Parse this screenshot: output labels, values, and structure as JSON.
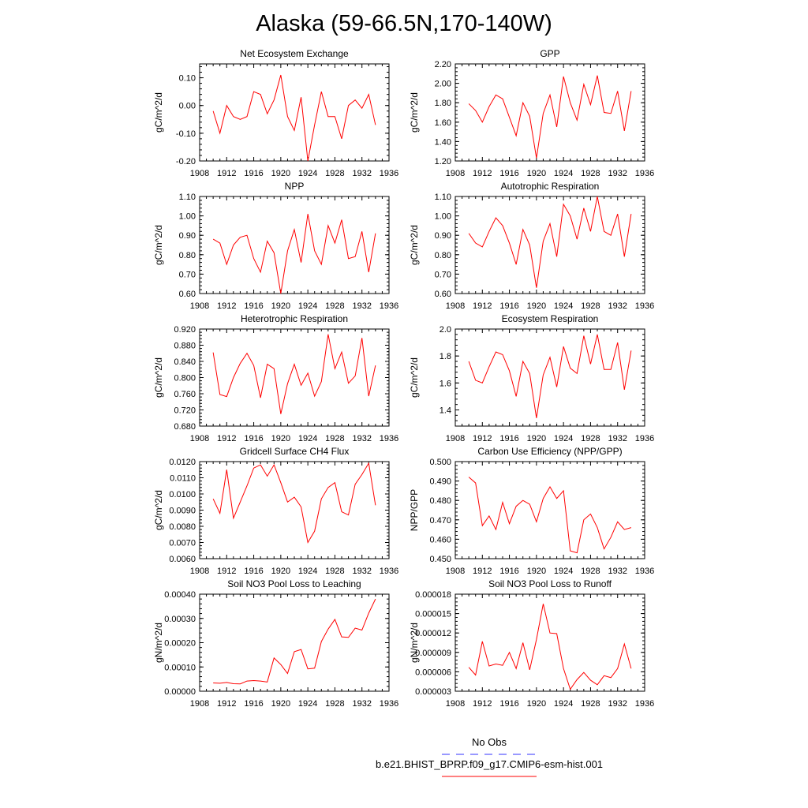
{
  "figure": {
    "title": "Alaska (59-66.5N,170-140W)",
    "legend": [
      {
        "label": "No Obs",
        "color": "#3333ff",
        "style": "dashed"
      },
      {
        "label": "b.e21.BHIST_BPRP.f09_g17.CMIP6-esm-hist.001",
        "color": "#ff0000",
        "style": "solid"
      }
    ]
  },
  "chart_data": [
    {
      "type": "line",
      "title": "Net Ecosystem Exchange",
      "xlabel": "",
      "ylabel": "gC/m^2/d",
      "xlim": [
        1908,
        1936
      ],
      "xticks": [
        "1908",
        "1912",
        "1916",
        "1920",
        "1924",
        "1928",
        "1932",
        "1936"
      ],
      "ylim": [
        -0.2,
        0.15
      ],
      "yticks": [
        "0.10",
        "0.00",
        "-0.10",
        "-0.20"
      ],
      "yticks_values": [
        0.1,
        0.0,
        -0.1,
        -0.2
      ],
      "series": [
        {
          "color": "#ff0000",
          "x": [
            1910,
            1911,
            1912,
            1913,
            1914,
            1915,
            1916,
            1917,
            1918,
            1919,
            1920,
            1921,
            1922,
            1923,
            1924,
            1925,
            1926,
            1927,
            1928,
            1929,
            1930,
            1931,
            1932,
            1933,
            1934
          ],
          "values": [
            -0.02,
            -0.1,
            0.0,
            -0.04,
            -0.05,
            -0.04,
            0.05,
            0.04,
            -0.03,
            0.02,
            0.11,
            -0.04,
            -0.09,
            0.03,
            -0.2,
            -0.07,
            0.05,
            -0.04,
            -0.04,
            -0.12,
            0.0,
            0.02,
            -0.01,
            0.04,
            -0.07
          ]
        }
      ]
    },
    {
      "type": "line",
      "title": "GPP",
      "xlabel": "",
      "ylabel": "gC/m^2/d",
      "xlim": [
        1908,
        1936
      ],
      "xticks": [
        "1908",
        "1912",
        "1916",
        "1920",
        "1924",
        "1928",
        "1932",
        "1936"
      ],
      "ylim": [
        1.2,
        2.2
      ],
      "yticks": [
        "2.20",
        "2.00",
        "1.80",
        "1.60",
        "1.40",
        "1.20"
      ],
      "yticks_values": [
        2.2,
        2.0,
        1.8,
        1.6,
        1.4,
        1.2
      ],
      "series": [
        {
          "color": "#ff0000",
          "x": [
            1910,
            1911,
            1912,
            1913,
            1914,
            1915,
            1916,
            1917,
            1918,
            1919,
            1920,
            1921,
            1922,
            1923,
            1924,
            1925,
            1926,
            1927,
            1928,
            1929,
            1930,
            1931,
            1932,
            1933,
            1934
          ],
          "values": [
            1.79,
            1.72,
            1.6,
            1.76,
            1.88,
            1.84,
            1.65,
            1.46,
            1.8,
            1.66,
            1.23,
            1.69,
            1.88,
            1.55,
            2.07,
            1.8,
            1.62,
            1.99,
            1.78,
            2.08,
            1.7,
            1.69,
            1.92,
            1.51,
            1.92
          ]
        }
      ]
    },
    {
      "type": "line",
      "title": "NPP",
      "xlabel": "",
      "ylabel": "gC/m^2/d",
      "xlim": [
        1908,
        1936
      ],
      "xticks": [
        "1908",
        "1912",
        "1916",
        "1920",
        "1924",
        "1928",
        "1932",
        "1936"
      ],
      "ylim": [
        0.6,
        1.1
      ],
      "yticks": [
        "1.10",
        "1.00",
        "0.90",
        "0.80",
        "0.70",
        "0.60"
      ],
      "yticks_values": [
        1.1,
        1.0,
        0.9,
        0.8,
        0.7,
        0.6
      ],
      "series": [
        {
          "color": "#ff0000",
          "x": [
            1910,
            1911,
            1912,
            1913,
            1914,
            1915,
            1916,
            1917,
            1918,
            1919,
            1920,
            1921,
            1922,
            1923,
            1924,
            1925,
            1926,
            1927,
            1928,
            1929,
            1930,
            1931,
            1932,
            1933,
            1934
          ],
          "values": [
            0.88,
            0.86,
            0.75,
            0.85,
            0.89,
            0.9,
            0.78,
            0.71,
            0.87,
            0.81,
            0.6,
            0.82,
            0.93,
            0.76,
            1.01,
            0.82,
            0.75,
            0.95,
            0.86,
            0.98,
            0.78,
            0.79,
            0.92,
            0.71,
            0.91
          ]
        }
      ]
    },
    {
      "type": "line",
      "title": "Autotrophic Respiration",
      "xlabel": "",
      "ylabel": "gC/m^2/d",
      "xlim": [
        1908,
        1936
      ],
      "xticks": [
        "1908",
        "1912",
        "1916",
        "1920",
        "1924",
        "1928",
        "1932",
        "1936"
      ],
      "ylim": [
        0.6,
        1.1
      ],
      "yticks": [
        "1.10",
        "1.00",
        "0.90",
        "0.80",
        "0.70",
        "0.60"
      ],
      "yticks_values": [
        1.1,
        1.0,
        0.9,
        0.8,
        0.7,
        0.6
      ],
      "series": [
        {
          "color": "#ff0000",
          "x": [
            1910,
            1911,
            1912,
            1913,
            1914,
            1915,
            1916,
            1917,
            1918,
            1919,
            1920,
            1921,
            1922,
            1923,
            1924,
            1925,
            1926,
            1927,
            1928,
            1929,
            1930,
            1931,
            1932,
            1933,
            1934
          ],
          "values": [
            0.91,
            0.86,
            0.84,
            0.92,
            0.99,
            0.95,
            0.86,
            0.75,
            0.93,
            0.85,
            0.63,
            0.87,
            0.96,
            0.79,
            1.06,
            1.0,
            0.88,
            1.04,
            0.92,
            1.1,
            0.92,
            0.9,
            1.01,
            0.79,
            1.01
          ]
        }
      ]
    },
    {
      "type": "line",
      "title": "Heterotrophic Respiration",
      "xlabel": "",
      "ylabel": "gC/m^2/d",
      "xlim": [
        1908,
        1936
      ],
      "xticks": [
        "1908",
        "1912",
        "1916",
        "1920",
        "1924",
        "1928",
        "1932",
        "1936"
      ],
      "ylim": [
        0.68,
        0.92
      ],
      "yticks": [
        "0.920",
        "0.880",
        "0.840",
        "0.800",
        "0.760",
        "0.720",
        "0.680"
      ],
      "yticks_values": [
        0.92,
        0.88,
        0.84,
        0.8,
        0.76,
        0.72,
        0.68
      ],
      "series": [
        {
          "color": "#ff0000",
          "x": [
            1910,
            1911,
            1912,
            1913,
            1914,
            1915,
            1916,
            1917,
            1918,
            1919,
            1920,
            1921,
            1922,
            1923,
            1924,
            1925,
            1926,
            1927,
            1928,
            1929,
            1930,
            1931,
            1932,
            1933,
            1934
          ],
          "values": [
            0.862,
            0.758,
            0.753,
            0.8,
            0.835,
            0.86,
            0.83,
            0.75,
            0.833,
            0.822,
            0.71,
            0.785,
            0.833,
            0.781,
            0.811,
            0.754,
            0.79,
            0.907,
            0.822,
            0.863,
            0.786,
            0.804,
            0.898,
            0.754,
            0.83
          ]
        }
      ]
    },
    {
      "type": "line",
      "title": "Ecosystem Respiration",
      "xlabel": "",
      "ylabel": "gC/m^2/d",
      "xlim": [
        1908,
        1936
      ],
      "xticks": [
        "1908",
        "1912",
        "1916",
        "1920",
        "1924",
        "1928",
        "1932",
        "1936"
      ],
      "ylim": [
        1.28,
        2.0
      ],
      "yticks": [
        "2.0",
        "1.8",
        "1.6",
        "1.4"
      ],
      "yticks_values": [
        2.0,
        1.8,
        1.6,
        1.4
      ],
      "series": [
        {
          "color": "#ff0000",
          "x": [
            1910,
            1911,
            1912,
            1913,
            1914,
            1915,
            1916,
            1917,
            1918,
            1919,
            1920,
            1921,
            1922,
            1923,
            1924,
            1925,
            1926,
            1927,
            1928,
            1929,
            1930,
            1931,
            1932,
            1933,
            1934
          ],
          "values": [
            1.76,
            1.62,
            1.6,
            1.72,
            1.83,
            1.81,
            1.69,
            1.5,
            1.76,
            1.67,
            1.34,
            1.66,
            1.79,
            1.57,
            1.87,
            1.71,
            1.67,
            1.95,
            1.74,
            1.96,
            1.7,
            1.7,
            1.9,
            1.55,
            1.84
          ]
        }
      ]
    },
    {
      "type": "line",
      "title": "Gridcell Surface CH4 Flux",
      "xlabel": "",
      "ylabel": "gC/m^2/d",
      "xlim": [
        1908,
        1936
      ],
      "xticks": [
        "1908",
        "1912",
        "1916",
        "1920",
        "1924",
        "1928",
        "1932",
        "1936"
      ],
      "ylim": [
        0.006,
        0.012
      ],
      "yticks": [
        "0.0120",
        "0.0110",
        "0.0100",
        "0.0090",
        "0.0080",
        "0.0070",
        "0.0060"
      ],
      "yticks_values": [
        0.012,
        0.011,
        0.01,
        0.009,
        0.008,
        0.007,
        0.006
      ],
      "series": [
        {
          "color": "#ff0000",
          "x": [
            1910,
            1911,
            1912,
            1913,
            1914,
            1915,
            1916,
            1917,
            1918,
            1919,
            1920,
            1921,
            1922,
            1923,
            1924,
            1925,
            1926,
            1927,
            1928,
            1929,
            1930,
            1931,
            1932,
            1933,
            1934
          ],
          "values": [
            0.0097,
            0.0088,
            0.0115,
            0.0085,
            0.0095,
            0.0105,
            0.0116,
            0.0118,
            0.0111,
            0.0118,
            0.0107,
            0.0095,
            0.0098,
            0.0092,
            0.007,
            0.0077,
            0.0097,
            0.0104,
            0.0107,
            0.0089,
            0.0087,
            0.0106,
            0.0112,
            0.0119,
            0.0093
          ]
        }
      ]
    },
    {
      "type": "line",
      "title": "Carbon Use Efficiency (NPP/GPP)",
      "xlabel": "",
      "ylabel": "NPP/GPP",
      "xlim": [
        1908,
        1936
      ],
      "xticks": [
        "1908",
        "1912",
        "1916",
        "1920",
        "1924",
        "1928",
        "1932",
        "1936"
      ],
      "ylim": [
        0.45,
        0.5
      ],
      "yticks": [
        "0.500",
        "0.490",
        "0.480",
        "0.470",
        "0.460",
        "0.450"
      ],
      "yticks_values": [
        0.5,
        0.49,
        0.48,
        0.47,
        0.46,
        0.45
      ],
      "series": [
        {
          "color": "#ff0000",
          "x": [
            1910,
            1911,
            1912,
            1913,
            1914,
            1915,
            1916,
            1917,
            1918,
            1919,
            1920,
            1921,
            1922,
            1923,
            1924,
            1925,
            1926,
            1927,
            1928,
            1929,
            1930,
            1931,
            1932,
            1933,
            1934
          ],
          "values": [
            0.492,
            0.489,
            0.467,
            0.472,
            0.465,
            0.479,
            0.468,
            0.477,
            0.48,
            0.478,
            0.469,
            0.481,
            0.487,
            0.481,
            0.485,
            0.454,
            0.453,
            0.47,
            0.473,
            0.466,
            0.455,
            0.461,
            0.469,
            0.465,
            0.466
          ]
        }
      ]
    },
    {
      "type": "line",
      "title": "Soil NO3 Pool Loss to Leaching",
      "xlabel": "",
      "ylabel": "gN/m^2/d",
      "xlim": [
        1908,
        1936
      ],
      "xticks": [
        "1908",
        "1912",
        "1916",
        "1920",
        "1924",
        "1928",
        "1932",
        "1936"
      ],
      "ylim": [
        0.0,
        0.0004
      ],
      "yticks": [
        "0.00040",
        "0.00030",
        "0.00020",
        "0.00010",
        "0.00000"
      ],
      "yticks_values": [
        0.0004,
        0.0003,
        0.0002,
        0.0001,
        0.0
      ],
      "series": [
        {
          "color": "#ff0000",
          "x": [
            1910,
            1911,
            1912,
            1913,
            1914,
            1915,
            1916,
            1917,
            1918,
            1919,
            1920,
            1921,
            1922,
            1923,
            1924,
            1925,
            1926,
            1927,
            1928,
            1929,
            1930,
            1931,
            1932,
            1933,
            1934
          ],
          "values": [
            3.4e-05,
            3.3e-05,
            3.6e-05,
            3.1e-05,
            3e-05,
            4.2e-05,
            4.4e-05,
            4.2e-05,
            3.8e-05,
            0.000137,
            0.00011,
            7.3e-05,
            0.000163,
            0.000172,
            9.2e-05,
            9.5e-05,
            0.000205,
            0.000256,
            0.000296,
            0.000224,
            0.000222,
            0.00026,
            0.000252,
            0.000322,
            0.00038
          ]
        }
      ]
    },
    {
      "type": "line",
      "title": "Soil NO3 Pool Loss to Runoff",
      "xlabel": "",
      "ylabel": "gN/m^2/d",
      "xlim": [
        1908,
        1936
      ],
      "xticks": [
        "1908",
        "1912",
        "1916",
        "1920",
        "1924",
        "1928",
        "1932",
        "1936"
      ],
      "ylim": [
        3e-06,
        1.8e-05
      ],
      "yticks": [
        "0.000018",
        "0.000015",
        "0.000012",
        "0.000009",
        "0.000006",
        "0.000003"
      ],
      "yticks_values": [
        1.8e-05,
        1.5e-05,
        1.2e-05,
        9e-06,
        6e-06,
        3e-06
      ],
      "series": [
        {
          "color": "#ff0000",
          "x": [
            1910,
            1911,
            1912,
            1913,
            1914,
            1915,
            1916,
            1917,
            1918,
            1919,
            1920,
            1921,
            1922,
            1923,
            1924,
            1925,
            1926,
            1927,
            1928,
            1929,
            1930,
            1931,
            1932,
            1933,
            1934
          ],
          "values": [
            6.7e-06,
            5.5e-06,
            1.07e-05,
            6.9e-06,
            7.2e-06,
            7e-06,
            9e-06,
            6.5e-06,
            1.05e-05,
            6.3e-06,
            1.1e-05,
            1.65e-05,
            1.2e-05,
            1.19e-05,
            6.5e-06,
            3.3e-06,
            4.8e-06,
            5.9e-06,
            4.7e-06,
            4e-06,
            5.4e-06,
            5.1e-06,
            6.5e-06,
            1.03e-05,
            6.5e-06
          ]
        }
      ]
    }
  ]
}
